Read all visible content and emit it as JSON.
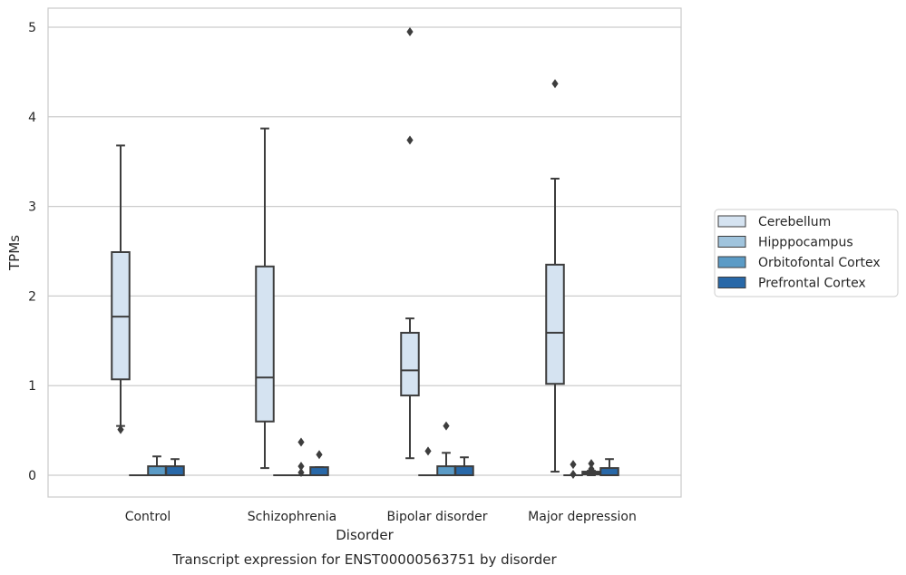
{
  "chart_data": {
    "type": "box",
    "title": "Transcript expression for ENST00000563751 by disorder",
    "xlabel": "Disorder",
    "ylabel": "TPMs",
    "ylim": [
      -0.25,
      5.2
    ],
    "yticks": [
      0,
      1,
      2,
      3,
      4,
      5
    ],
    "grid": true,
    "legend_position": "right",
    "categories": [
      "Control",
      "Schizophrenia",
      "Bipolar disorder",
      "Major depression"
    ],
    "series": [
      {
        "name": "Cerebellum",
        "color": "#d5e3f1",
        "boxes": [
          {
            "whisker_low": 0.55,
            "q1": 1.07,
            "median": 1.77,
            "q3": 2.49,
            "whisker_high": 3.68,
            "outliers": [
              0.51
            ]
          },
          {
            "whisker_low": 0.08,
            "q1": 0.6,
            "median": 1.09,
            "q3": 2.33,
            "whisker_high": 3.87,
            "outliers": []
          },
          {
            "whisker_low": 0.19,
            "q1": 0.89,
            "median": 1.17,
            "q3": 1.59,
            "whisker_high": 1.75,
            "outliers": [
              4.95,
              3.74
            ]
          },
          {
            "whisker_low": 0.04,
            "q1": 1.02,
            "median": 1.59,
            "q3": 2.35,
            "whisker_high": 3.31,
            "outliers": [
              4.37
            ]
          }
        ]
      },
      {
        "name": "Hipppocampus",
        "color": "#a0c4dd",
        "boxes": [
          {
            "whisker_low": 0.0,
            "q1": 0.0,
            "median": 0.0,
            "q3": 0.0,
            "whisker_high": 0.0,
            "outliers": []
          },
          {
            "whisker_low": 0.0,
            "q1": 0.0,
            "median": 0.0,
            "q3": 0.0,
            "whisker_high": 0.0,
            "outliers": []
          },
          {
            "whisker_low": 0.0,
            "q1": 0.0,
            "median": 0.0,
            "q3": 0.0,
            "whisker_high": 0.0,
            "outliers": [
              0.27
            ]
          },
          {
            "whisker_low": 0.0,
            "q1": 0.0,
            "median": 0.0,
            "q3": 0.0,
            "whisker_high": 0.0,
            "outliers": [
              0.12,
              0.01
            ]
          }
        ]
      },
      {
        "name": "Orbitofontal Cortex",
        "color": "#5b9bc6",
        "boxes": [
          {
            "whisker_low": 0.0,
            "q1": 0.0,
            "median": 0.0,
            "q3": 0.1,
            "whisker_high": 0.21,
            "outliers": []
          },
          {
            "whisker_low": 0.0,
            "q1": 0.0,
            "median": 0.0,
            "q3": 0.0,
            "whisker_high": 0.0,
            "outliers": [
              0.37,
              0.1,
              0.03
            ]
          },
          {
            "whisker_low": 0.0,
            "q1": 0.0,
            "median": 0.0,
            "q3": 0.1,
            "whisker_high": 0.25,
            "outliers": [
              0.55
            ]
          },
          {
            "whisker_low": 0.0,
            "q1": 0.01,
            "median": 0.02,
            "q3": 0.04,
            "whisker_high": 0.05,
            "outliers": [
              0.13,
              0.07
            ]
          }
        ]
      },
      {
        "name": "Prefrontal Cortex",
        "color": "#2868a8",
        "boxes": [
          {
            "whisker_low": 0.0,
            "q1": 0.0,
            "median": 0.0,
            "q3": 0.1,
            "whisker_high": 0.18,
            "outliers": []
          },
          {
            "whisker_low": 0.0,
            "q1": 0.0,
            "median": 0.0,
            "q3": 0.09,
            "whisker_high": 0.09,
            "outliers": [
              0.23
            ]
          },
          {
            "whisker_low": 0.0,
            "q1": 0.0,
            "median": 0.0,
            "q3": 0.1,
            "whisker_high": 0.2,
            "outliers": []
          },
          {
            "whisker_low": 0.0,
            "q1": 0.0,
            "median": 0.0,
            "q3": 0.08,
            "whisker_high": 0.18,
            "outliers": []
          }
        ]
      }
    ]
  }
}
